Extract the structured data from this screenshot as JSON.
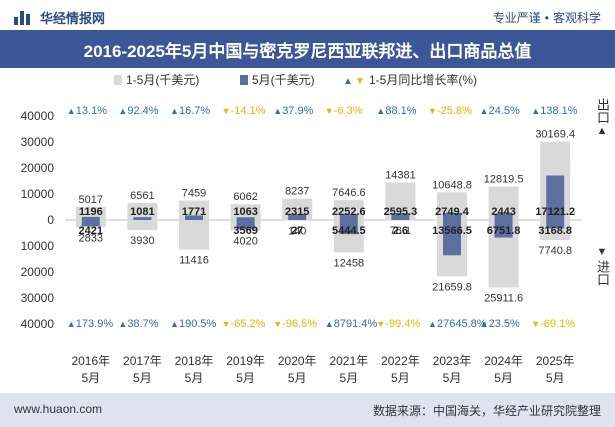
{
  "header": {
    "brand": "华经情报网",
    "tag1": "专业严谨",
    "tag2": "客观科学",
    "title": "2016-2025年5月中国与密克罗尼西亚联邦进、出口商品总值"
  },
  "footer": {
    "website": "www.huaon.com",
    "source": "数据来源：中国海关，华经产业研究院整理"
  },
  "side": {
    "export_label": "出口",
    "import_label": "进口"
  },
  "colors": {
    "cum_bar": "#d9d9d9",
    "month_bar": "#5c6f9e",
    "up": "#2f6ebb",
    "down": "#f0b400",
    "header_bg": "#3b5797"
  },
  "chart_data": {
    "type": "bar",
    "legend": {
      "cum": "1-5月(千美元)",
      "month": "5月(千美元)",
      "yoy": "1-5月同比增长率(%)"
    },
    "categories": [
      "2016年\n5月",
      "2017年\n5月",
      "2018年\n5月",
      "2019年\n5月",
      "2020年\n5月",
      "2021年\n5月",
      "2022年\n5月",
      "2023年\n5月",
      "2024年\n5月",
      "2025年\n5月"
    ],
    "export_cum": [
      5017,
      6561,
      7459,
      6062,
      8237,
      7646.6,
      14381,
      10648.8,
      12819.5,
      30169.4
    ],
    "export_month": [
      1196,
      1081,
      1771,
      1063,
      2315,
      2252.6,
      2595.3,
      2749.4,
      2443,
      17121.2
    ],
    "import_cum": [
      2833,
      3930,
      11416,
      4020,
      140,
      12458,
      78.1,
      21659.8,
      25911.6,
      7740.8
    ],
    "import_month": [
      2421,
      0,
      0,
      3569,
      27,
      5444.5,
      2.6,
      13566.5,
      6751.8,
      3168.8
    ],
    "import_month_labels": [
      "2421",
      "",
      "",
      "3569",
      "27",
      "5444.5",
      "2.6",
      "13566.5",
      "6751.8",
      "3168.8"
    ],
    "export_yoy": [
      "13.1%",
      "92.4%",
      "16.7%",
      "-14.1%",
      "37.9%",
      "-6.3%",
      "88.1%",
      "-25.8%",
      "24.5%",
      "138.1%"
    ],
    "export_yoy_dir": [
      "up",
      "up",
      "up",
      "down",
      "up",
      "down",
      "up",
      "down",
      "up",
      "up"
    ],
    "import_yoy": [
      "173.9%",
      "38.7%",
      "190.5%",
      "-65.2%",
      "-96.5%",
      "8791.4%",
      "-99.4%",
      "27645.8%",
      "23.5%",
      "-69.1%"
    ],
    "import_yoy_dir": [
      "up",
      "up",
      "up",
      "down",
      "down",
      "up",
      "down",
      "up",
      "up",
      "down"
    ],
    "y_ticks": [
      "40000",
      "30000",
      "20000",
      "10000",
      "0",
      "10000",
      "20000",
      "30000",
      "40000"
    ],
    "ylim": [
      -40000,
      40000
    ],
    "grid": false
  }
}
